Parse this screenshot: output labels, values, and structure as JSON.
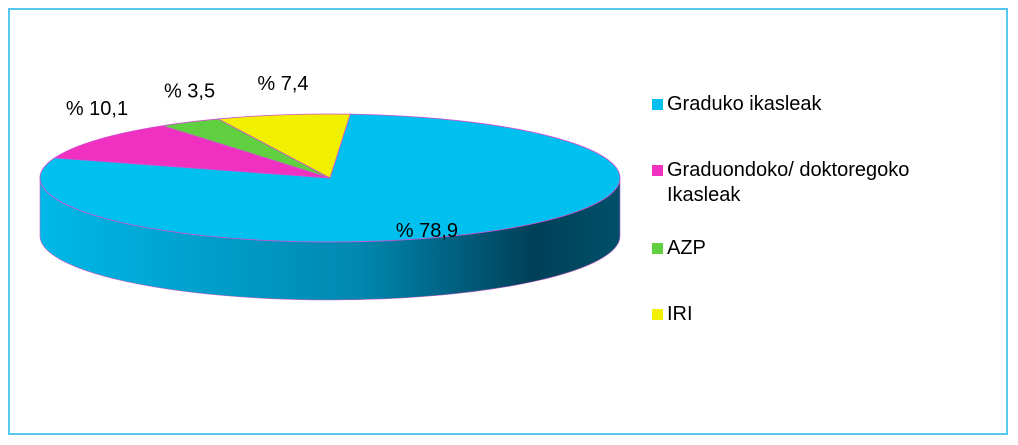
{
  "chart_data": {
    "type": "pie",
    "categories": [
      "Graduko ikasleak",
      "Graduondoko/ doktoregoko Ikasleak",
      "AZP",
      "IRI"
    ],
    "values": [
      78.9,
      10.1,
      3.5,
      7.4
    ],
    "value_labels": [
      "% 78,9",
      "% 10,1",
      "% 3,5",
      "% 7,4"
    ],
    "colors": [
      "#00c0f0",
      "#f030c0",
      "#60d040",
      "#f0f000"
    ]
  }
}
